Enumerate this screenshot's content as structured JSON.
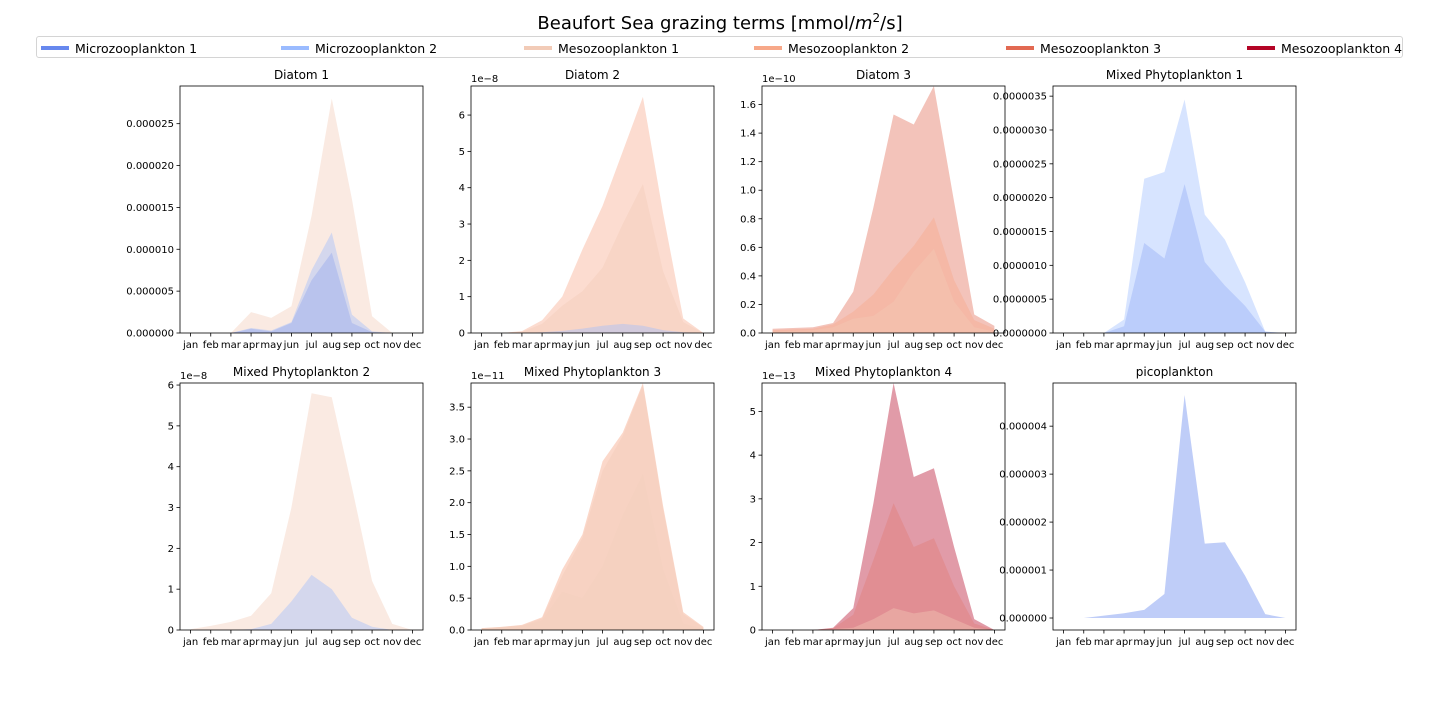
{
  "figure": {
    "title_main": "Beaufort Sea  grazing terms [mmol/",
    "title_unit_m": "m",
    "title_unit_exp": "2",
    "title_tail": "/s]"
  },
  "legend": [
    {
      "name": "Microzooplankton 1",
      "color": "#6788ee"
    },
    {
      "name": "Microzooplankton 2",
      "color": "#9abbff"
    },
    {
      "name": "Mesozooplankton 1",
      "color": "#f2cbb7"
    },
    {
      "name": "Mesozooplankton 2",
      "color": "#f7a889"
    },
    {
      "name": "Mesozooplankton 3",
      "color": "#e26952"
    },
    {
      "name": "Mesozooplankton 4",
      "color": "#b40426"
    }
  ],
  "chart_data": [
    {
      "type": "area",
      "title": "Diatom 1",
      "categories": [
        "jan",
        "feb",
        "mar",
        "apr",
        "may",
        "jun",
        "jul",
        "aug",
        "sep",
        "oct",
        "nov",
        "dec"
      ],
      "ylim": [
        0,
        2.95e-05
      ],
      "yticks": [
        0,
        5e-06,
        1e-05,
        1.5e-05,
        2e-05,
        2.5e-05
      ],
      "yticklabels": [
        "0.000000",
        "0.000005",
        "0.000010",
        "0.000015",
        "0.000020",
        "0.000025"
      ],
      "offset_label": "",
      "series": [
        {
          "name": "Mesozooplankton 1",
          "color": "#f2cbb7",
          "opacity": 0.4,
          "values": [
            0,
            0,
            0,
            2.5e-06,
            1.8e-06,
            3.2e-06,
            1.4e-05,
            2.8e-05,
            1.6e-05,
            2e-06,
            0,
            0
          ]
        },
        {
          "name": "Microzooplankton 2",
          "color": "#9abbff",
          "opacity": 0.4,
          "values": [
            0,
            0,
            0,
            6e-07,
            3e-07,
            1.3e-06,
            7.5e-06,
            1.2e-05,
            2.2e-06,
            2e-07,
            0,
            0
          ]
        },
        {
          "name": "Microzooplankton 1",
          "color": "#6788ee",
          "opacity": 0.25,
          "values": [
            0,
            0,
            0,
            5e-07,
            2e-07,
            1.2e-06,
            6.3e-06,
            9.6e-06,
            1.2e-06,
            1e-07,
            0,
            0
          ]
        }
      ]
    },
    {
      "type": "area",
      "title": "Diatom 2",
      "categories": [
        "jan",
        "feb",
        "mar",
        "apr",
        "may",
        "jun",
        "jul",
        "aug",
        "sep",
        "oct",
        "nov",
        "dec"
      ],
      "ylim": [
        0,
        6.8
      ],
      "yticks": [
        0,
        1,
        2,
        3,
        4,
        5,
        6
      ],
      "yticklabels": [
        "0",
        "1",
        "2",
        "3",
        "4",
        "5",
        "6"
      ],
      "offset_label": "1e−8",
      "series": [
        {
          "name": "Mesozooplankton 2",
          "color": "#f7a889",
          "opacity": 0.4,
          "values": [
            0,
            0,
            0.05,
            0.35,
            1.0,
            2.3,
            3.5,
            5.0,
            6.5,
            3.3,
            0.4,
            0
          ]
        },
        {
          "name": "Mesozooplankton 1",
          "color": "#f2cbb7",
          "opacity": 0.4,
          "values": [
            0,
            0,
            0.03,
            0.25,
            0.75,
            1.15,
            1.8,
            3.0,
            4.1,
            1.7,
            0.3,
            0
          ]
        },
        {
          "name": "Microzooplankton 2",
          "color": "#9abbff",
          "opacity": 0.4,
          "values": [
            0,
            0,
            0,
            0.02,
            0.06,
            0.12,
            0.2,
            0.25,
            0.2,
            0.08,
            0.02,
            0
          ]
        }
      ]
    },
    {
      "type": "area",
      "title": "Diatom 3",
      "categories": [
        "jan",
        "feb",
        "mar",
        "apr",
        "may",
        "jun",
        "jul",
        "aug",
        "sep",
        "oct",
        "nov",
        "dec"
      ],
      "ylim": [
        0,
        1.73
      ],
      "yticks": [
        0,
        0.2,
        0.4,
        0.6,
        0.8,
        1.0,
        1.2,
        1.4,
        1.6
      ],
      "yticklabels": [
        "0.0",
        "0.2",
        "0.4",
        "0.6",
        "0.8",
        "1.0",
        "1.2",
        "1.4",
        "1.6"
      ],
      "offset_label": "1e−10",
      "series": [
        {
          "name": "Mesozooplankton 3",
          "color": "#e26952",
          "opacity": 0.4,
          "values": [
            0.03,
            0.035,
            0.04,
            0.07,
            0.29,
            0.88,
            1.53,
            1.46,
            1.73,
            0.92,
            0.13,
            0.05
          ]
        },
        {
          "name": "Mesozooplankton 2",
          "color": "#f7a889",
          "opacity": 0.4,
          "values": [
            0.02,
            0.025,
            0.03,
            0.06,
            0.15,
            0.27,
            0.45,
            0.61,
            0.81,
            0.37,
            0.09,
            0.03
          ]
        },
        {
          "name": "Mesozooplankton 1",
          "color": "#f2cbb7",
          "opacity": 0.4,
          "values": [
            0.01,
            0.015,
            0.02,
            0.04,
            0.1,
            0.12,
            0.22,
            0.43,
            0.59,
            0.22,
            0.04,
            0.01
          ]
        }
      ]
    },
    {
      "type": "area",
      "title": "Mixed Phytoplankton 1",
      "categories": [
        "jan",
        "feb",
        "mar",
        "apr",
        "may",
        "jun",
        "jul",
        "aug",
        "sep",
        "oct",
        "nov",
        "dec"
      ],
      "ylim": [
        0,
        3.65e-06
      ],
      "yticks": [
        0,
        5e-07,
        1e-06,
        1.5e-06,
        2e-06,
        2.5e-06,
        3e-06,
        3.5e-06
      ],
      "yticklabels": [
        "0.0000000",
        "0.0000005",
        "0.0000010",
        "0.0000015",
        "0.0000020",
        "0.0000025",
        "0.0000030",
        "0.0000035"
      ],
      "offset_label": "",
      "series": [
        {
          "name": "Microzooplankton 2",
          "color": "#9abbff",
          "opacity": 0.4,
          "values": [
            0,
            0,
            0,
            2e-07,
            2.28e-06,
            2.38e-06,
            3.45e-06,
            1.75e-06,
            1.38e-06,
            7.5e-07,
            2e-08,
            0
          ]
        },
        {
          "name": "Microzooplankton 1",
          "color": "#6788ee",
          "opacity": 0.25,
          "values": [
            0,
            0,
            0,
            1e-07,
            1.33e-06,
            1.1e-06,
            2.2e-06,
            1.05e-06,
            7e-07,
            4e-07,
            2e-08,
            0
          ]
        }
      ]
    },
    {
      "type": "area",
      "title": "Mixed Phytoplankton 2",
      "categories": [
        "jan",
        "feb",
        "mar",
        "apr",
        "may",
        "jun",
        "jul",
        "aug",
        "sep",
        "oct",
        "nov",
        "dec"
      ],
      "ylim": [
        0,
        6.05
      ],
      "yticks": [
        0,
        1,
        2,
        3,
        4,
        5,
        6
      ],
      "yticklabels": [
        "0",
        "1",
        "2",
        "3",
        "4",
        "5",
        "6"
      ],
      "offset_label": "1e−8",
      "series": [
        {
          "name": "Mesozooplankton 1",
          "color": "#f2cbb7",
          "opacity": 0.4,
          "values": [
            0.02,
            0.1,
            0.2,
            0.35,
            0.9,
            3.0,
            5.8,
            5.7,
            3.5,
            1.2,
            0.15,
            0
          ]
        },
        {
          "name": "Microzooplankton 2",
          "color": "#9abbff",
          "opacity": 0.4,
          "values": [
            0,
            0,
            0,
            0.02,
            0.15,
            0.7,
            1.35,
            1.0,
            0.3,
            0.08,
            0,
            0
          ]
        }
      ]
    },
    {
      "type": "area",
      "title": "Mixed Phytoplankton 3",
      "categories": [
        "jan",
        "feb",
        "mar",
        "apr",
        "may",
        "jun",
        "jul",
        "aug",
        "sep",
        "oct",
        "nov",
        "dec"
      ],
      "ylim": [
        0,
        3.88
      ],
      "yticks": [
        0,
        0.5,
        1.0,
        1.5,
        2.0,
        2.5,
        3.0,
        3.5
      ],
      "yticklabels": [
        "0.0",
        "0.5",
        "1.0",
        "1.5",
        "2.0",
        "2.5",
        "3.0",
        "3.5"
      ],
      "offset_label": "1e−11",
      "series": [
        {
          "name": "Mesozooplankton 2",
          "color": "#f7a889",
          "opacity": 0.45,
          "values": [
            0.03,
            0.05,
            0.08,
            0.2,
            0.95,
            1.5,
            2.65,
            3.1,
            3.88,
            1.95,
            0.28,
            0.05
          ]
        },
        {
          "name": "Mesozooplankton 1",
          "color": "#f2cbb7",
          "opacity": 0.4,
          "values": [
            0.03,
            0.05,
            0.07,
            0.18,
            0.85,
            1.45,
            2.5,
            3.05,
            3.85,
            1.9,
            0.25,
            0.04
          ]
        },
        {
          "name": "Microzooplankton 2",
          "color": "#f2cbb7",
          "opacity": 0.2,
          "values": [
            0.02,
            0.04,
            0.06,
            0.15,
            0.6,
            0.5,
            1.0,
            1.8,
            2.45,
            0.95,
            0.1,
            0.02
          ]
        }
      ]
    },
    {
      "type": "area",
      "title": "Mixed Phytoplankton 4",
      "categories": [
        "jan",
        "feb",
        "mar",
        "apr",
        "may",
        "jun",
        "jul",
        "aug",
        "sep",
        "oct",
        "nov",
        "dec"
      ],
      "ylim": [
        0,
        5.65
      ],
      "yticks": [
        0,
        1,
        2,
        3,
        4,
        5
      ],
      "yticklabels": [
        "0",
        "1",
        "2",
        "3",
        "4",
        "5"
      ],
      "offset_label": "1e−13",
      "series": [
        {
          "name": "Mesozooplankton 4",
          "color": "#b40426",
          "opacity": 0.4,
          "values": [
            0,
            0,
            0,
            0.05,
            0.5,
            2.9,
            5.65,
            3.5,
            3.7,
            1.9,
            0.25,
            0
          ]
        },
        {
          "name": "Mesozooplankton 3",
          "color": "#e26952",
          "opacity": 0.25,
          "values": [
            0,
            0,
            0,
            0.04,
            0.35,
            1.6,
            2.9,
            1.9,
            2.1,
            1.0,
            0.15,
            0
          ]
        },
        {
          "name": "Mesozooplankton 2",
          "color": "#f2cbb7",
          "opacity": 0.4,
          "values": [
            0,
            0,
            0,
            0.02,
            0.05,
            0.25,
            0.5,
            0.38,
            0.45,
            0.25,
            0.05,
            0
          ]
        }
      ]
    },
    {
      "type": "area",
      "title": "picoplankton",
      "categories": [
        "jan",
        "feb",
        "mar",
        "apr",
        "may",
        "jun",
        "jul",
        "aug",
        "sep",
        "oct",
        "nov",
        "dec"
      ],
      "ylim": [
        -2.5e-07,
        4.9e-06
      ],
      "yticks": [
        0,
        1e-06,
        2e-06,
        3e-06,
        4e-06
      ],
      "yticklabels": [
        "0.000000",
        "0.000001",
        "0.000002",
        "0.000003",
        "0.000004"
      ],
      "offset_label": "",
      "series": [
        {
          "name": "Microzooplankton 1",
          "color": "#6788ee",
          "opacity": 0.42,
          "values": [
            0,
            0,
            5e-08,
            1e-07,
            1.7e-07,
            5e-07,
            4.65e-06,
            1.55e-06,
            1.58e-06,
            8.8e-07,
            8e-08,
            0
          ]
        }
      ]
    }
  ]
}
